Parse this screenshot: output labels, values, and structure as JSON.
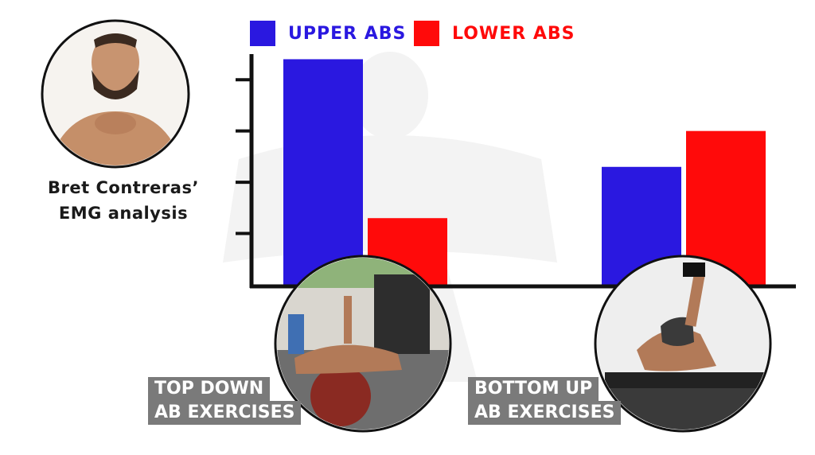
{
  "legend": {
    "upper": {
      "label": "UPPER ABS",
      "color": "#2a18e0"
    },
    "lower": {
      "label": "LOWER ABS",
      "color": "#ff0a0a"
    }
  },
  "caption": {
    "line1": "Bret Contreras’",
    "line2": "EMG analysis"
  },
  "tags": {
    "left": {
      "line1": "TOP DOWN",
      "line2": "AB EXERCISES"
    },
    "right": {
      "line1": "BOTTOM UP",
      "line2": "AB EXERCISES"
    }
  },
  "icons": [
    "person-portrait-icon",
    "ball-exercise-photo-icon",
    "leg-raise-photo-icon",
    "watermark-figure-icon"
  ],
  "chart_data": {
    "type": "bar",
    "categories": [
      "TOP DOWN AB EXERCISES",
      "BOTTOM UP AB EXERCISES"
    ],
    "series": [
      {
        "name": "UPPER ABS",
        "values": [
          4.4,
          2.3
        ],
        "color": "#2a18e0"
      },
      {
        "name": "LOWER ABS",
        "values": [
          1.3,
          3.0
        ],
        "color": "#ff0a0a"
      }
    ],
    "ylim": [
      0,
      4.5
    ],
    "yticks": [
      1,
      2,
      3,
      4
    ],
    "grid": false,
    "legend_position": "top"
  }
}
